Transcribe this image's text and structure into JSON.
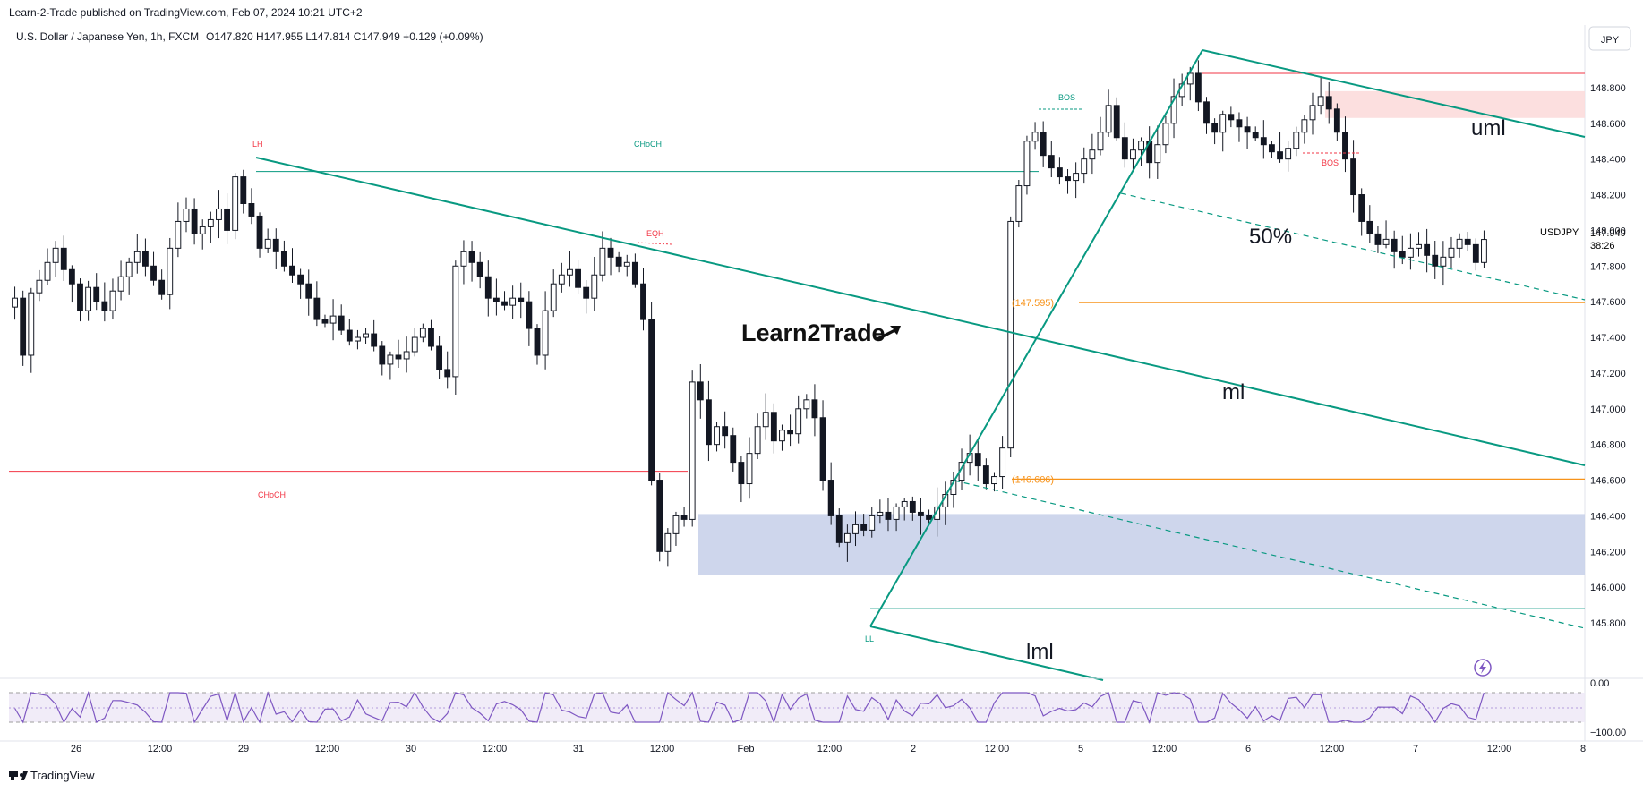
{
  "header": {
    "publisher": "Learn-2-Trade published on TradingView.com, Feb 07, 2024 10:21 UTC+2",
    "symbol": "U.S. Dollar / Japanese Yen, 1h, FXCM",
    "ohlc": "O147.820  H147.955  L147.814  C147.949  +0.129 (+0.09%)"
  },
  "currency_button": "JPY",
  "footer": {
    "brand": "TradingView"
  },
  "colors": {
    "teal": "#089981",
    "red": "#f23645",
    "orange": "#f7931a",
    "candle": "#131722",
    "demand_zone": "#c9d2ea",
    "supply_zone": "#fcdcdc",
    "rsi": "#7e57c2"
  },
  "chart_data": {
    "type": "candlestick",
    "symbol": "USDJPY",
    "timeframe": "1h",
    "y_range": [
      145.72,
      148.96
    ],
    "y_ticks": [
      "148.800",
      "148.600",
      "148.400",
      "148.200",
      "148.000",
      "147.800",
      "147.600",
      "147.400",
      "147.200",
      "147.000",
      "146.800",
      "146.600",
      "146.400",
      "146.200",
      "146.000",
      "145.800"
    ],
    "x_ticks": [
      "26",
      "12:00",
      "29",
      "12:00",
      "30",
      "12:00",
      "31",
      "12:00",
      "Feb",
      "12:00",
      "2",
      "12:00",
      "5",
      "12:00",
      "6",
      "12:00",
      "7",
      "12:00",
      "8"
    ],
    "last_price": {
      "label": "USDJPY",
      "value": "147.949",
      "countdown": "38:26"
    },
    "horizontal_levels": [
      {
        "value": 148.88,
        "color": "red"
      },
      {
        "value": 146.65,
        "color": "red",
        "label": "CHoCH"
      },
      {
        "value": 148.33,
        "color": "teal",
        "label": "CHoCH"
      },
      {
        "value": 147.595,
        "color": "orange",
        "label": "(147.595)"
      },
      {
        "value": 146.606,
        "color": "orange",
        "label": "(146.606)"
      },
      {
        "value": 145.88,
        "color": "teal"
      }
    ],
    "zones": [
      {
        "type": "demand",
        "from": 146.07,
        "to": 146.41
      },
      {
        "type": "supply",
        "from": 148.63,
        "to": 148.78
      }
    ],
    "annotations": {
      "lh": "LH",
      "ll": "LL",
      "choch_top": "CHoCH",
      "choch_bottom": "CHoCH",
      "bos_top": "BOS",
      "bos_right": "BOS",
      "eqh": "EQH",
      "fifty": "50%",
      "uml": "uml",
      "ml": "ml",
      "lml": "lml",
      "logo": "Learn2Trade"
    },
    "closes": [
      147.62,
      147.3,
      147.65,
      147.72,
      147.82,
      147.9,
      147.78,
      147.7,
      147.55,
      147.68,
      147.6,
      147.55,
      147.66,
      147.74,
      147.82,
      147.88,
      147.8,
      147.72,
      147.64,
      147.9,
      148.05,
      148.12,
      147.98,
      148.02,
      148.06,
      148.12,
      148.0,
      148.3,
      148.15,
      148.08,
      147.9,
      147.95,
      147.88,
      147.8,
      147.75,
      147.7,
      147.62,
      147.5,
      147.48,
      147.52,
      147.44,
      147.38,
      147.4,
      147.42,
      147.35,
      147.25,
      147.3,
      147.28,
      147.32,
      147.4,
      147.45,
      147.35,
      147.22,
      147.18,
      147.8,
      147.88,
      147.82,
      147.74,
      147.62,
      147.6,
      147.58,
      147.62,
      147.6,
      147.45,
      147.3,
      147.55,
      147.7,
      147.75,
      147.78,
      147.68,
      147.62,
      147.75,
      147.9,
      147.85,
      147.8,
      147.82,
      147.7,
      147.5,
      146.6,
      146.2,
      146.3,
      146.4,
      146.38,
      147.15,
      147.05,
      146.8,
      146.9,
      146.85,
      146.7,
      146.58,
      146.75,
      146.9,
      146.98,
      146.82,
      146.88,
      146.86,
      147.0,
      147.05,
      146.95,
      146.6,
      146.4,
      146.25,
      146.3,
      146.35,
      146.32,
      146.4,
      146.42,
      146.38,
      146.45,
      146.48,
      146.42,
      146.4,
      146.38,
      146.45,
      146.52,
      146.6,
      146.7,
      146.75,
      146.68,
      146.58,
      146.62,
      146.78,
      148.05,
      148.25,
      148.5,
      148.55,
      148.42,
      148.35,
      148.3,
      148.28,
      148.32,
      148.4,
      148.45,
      148.55,
      148.7,
      148.52,
      148.4,
      148.45,
      148.5,
      148.38,
      148.48,
      148.6,
      148.75,
      148.82,
      148.88,
      148.72,
      148.6,
      148.55,
      148.65,
      148.62,
      148.58,
      148.55,
      148.52,
      148.48,
      148.44,
      148.4,
      148.46,
      148.55,
      148.62,
      148.7,
      148.75,
      148.68,
      148.55,
      148.4,
      148.2,
      148.05,
      147.98,
      147.92,
      147.95,
      147.88,
      147.85,
      147.9,
      147.92,
      147.86,
      147.8,
      147.85,
      147.9,
      147.95,
      147.92,
      147.82,
      147.949
    ]
  }
}
